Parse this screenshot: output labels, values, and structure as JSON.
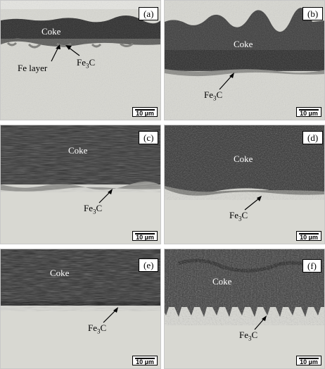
{
  "panels": [
    {
      "id": "a",
      "label": "(a)",
      "coke": "Coke",
      "annotations": [
        "Fe layer",
        "Fe3C"
      ],
      "scale": "10 µm"
    },
    {
      "id": "b",
      "label": "(b)",
      "coke": "Coke",
      "annotations": [
        "Fe3C"
      ],
      "scale": "10 µm"
    },
    {
      "id": "c",
      "label": "(c)",
      "coke": "Coke",
      "annotations": [
        "Fe3C"
      ],
      "scale": "10 µm"
    },
    {
      "id": "d",
      "label": "(d)",
      "coke": "Coke",
      "annotations": [
        "Fe3C"
      ],
      "scale": "10 µm"
    },
    {
      "id": "e",
      "label": "(e)",
      "coke": "Coke",
      "annotations": [
        "Fe3C"
      ],
      "scale": "10 µm"
    },
    {
      "id": "f",
      "label": "(f)",
      "coke": "Coke",
      "annotations": [
        "Fe3C"
      ],
      "scale": "10 µm"
    }
  ],
  "colors": {
    "coke_dark": "#2a2a2a",
    "coke_mid": "#3d3d3d",
    "metal": "#dcdcd6",
    "carbide": "#8a8a86",
    "arrow": "#000000"
  }
}
